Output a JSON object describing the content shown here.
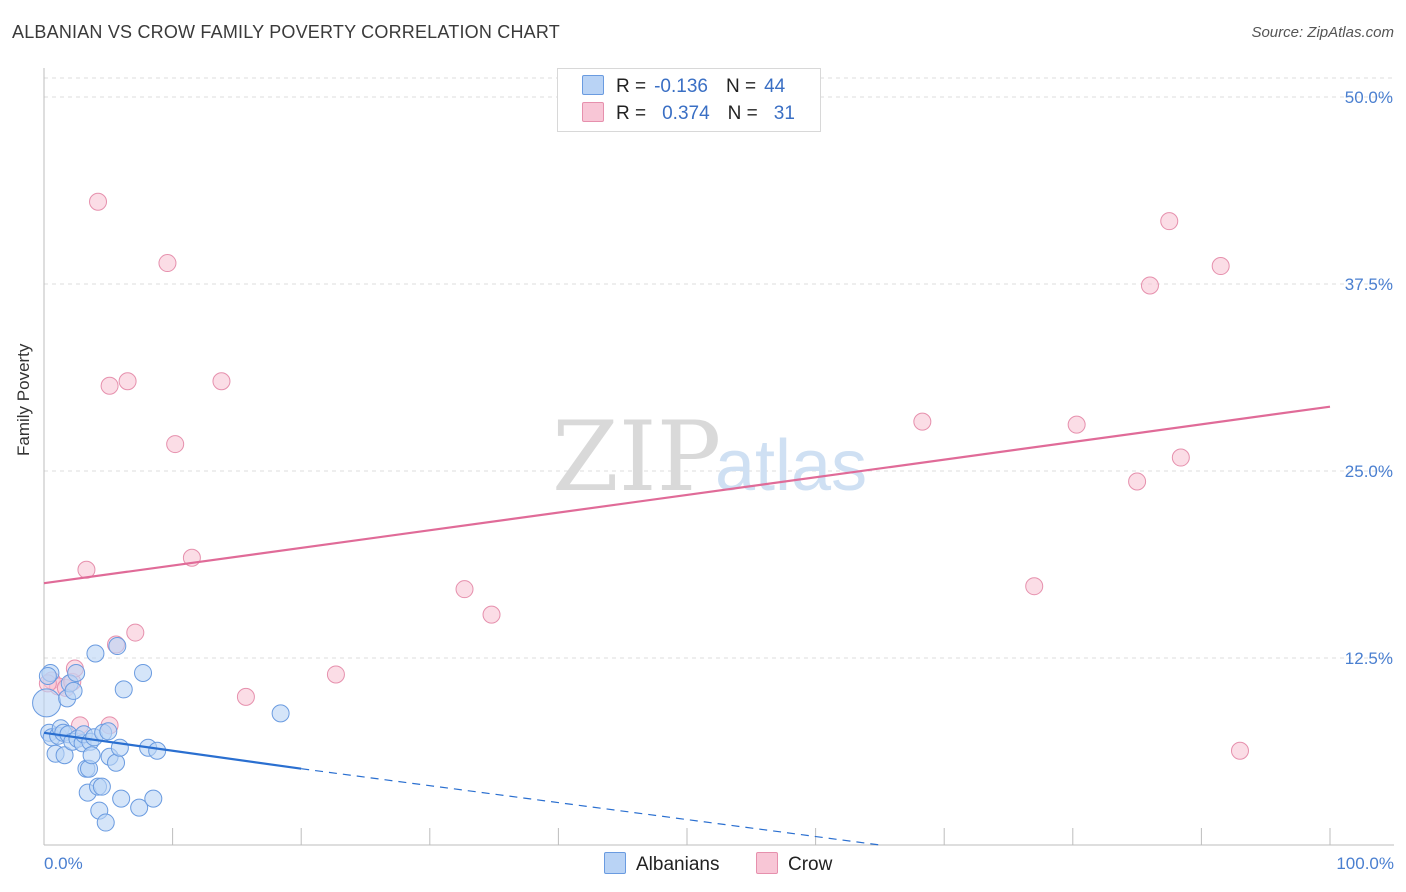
{
  "header": {
    "title": "ALBANIAN VS CROW FAMILY POVERTY CORRELATION CHART",
    "source": "Source: ZipAtlas.com"
  },
  "watermark": {
    "zip": "ZIP",
    "atlas": "atlas"
  },
  "legend": {
    "r_label": "R =",
    "n_label": "N =",
    "albanians": {
      "r": "-0.136",
      "n": "44"
    },
    "crow": {
      "r": "0.374",
      "n": "31"
    }
  },
  "colors": {
    "albanian_fill": "#b9d3f5",
    "albanian_stroke": "#6a9be0",
    "albanian_line": "#2a6fd0",
    "crow_fill": "#f8c6d6",
    "crow_stroke": "#e690ad",
    "crow_line": "#e06b98",
    "tick_text": "#4a7fd0"
  },
  "chart_data": {
    "type": "scatter",
    "title": "ALBANIAN VS CROW FAMILY POVERTY CORRELATION CHART",
    "xlabel": "",
    "ylabel": "Family Poverty",
    "xlim": [
      0,
      100
    ],
    "ylim": [
      0,
      50
    ],
    "x_ticks": [
      0,
      100
    ],
    "x_tick_labels": [
      "0.0%",
      "100.0%"
    ],
    "y_ticks": [
      12.5,
      25.0,
      37.5,
      50.0
    ],
    "y_tick_labels": [
      "12.5%",
      "25.0%",
      "37.5%",
      "50.0%"
    ],
    "grid": true,
    "series": [
      {
        "name": "Albanians",
        "r": -0.136,
        "n": 44,
        "points": [
          [
            0.2,
            9.5
          ],
          [
            0.4,
            7.5
          ],
          [
            0.5,
            11.5
          ],
          [
            0.6,
            7.2
          ],
          [
            0.9,
            6.1
          ],
          [
            1.1,
            7.3
          ],
          [
            1.3,
            7.8
          ],
          [
            1.5,
            7.5
          ],
          [
            1.6,
            6.0
          ],
          [
            1.8,
            9.8
          ],
          [
            1.9,
            7.4
          ],
          [
            2.0,
            10.8
          ],
          [
            2.2,
            6.9
          ],
          [
            2.3,
            10.3
          ],
          [
            2.5,
            11.5
          ],
          [
            2.6,
            7.1
          ],
          [
            3.0,
            6.8
          ],
          [
            3.1,
            7.4
          ],
          [
            3.3,
            5.1
          ],
          [
            3.4,
            3.5
          ],
          [
            3.5,
            5.1
          ],
          [
            3.6,
            6.9
          ],
          [
            3.7,
            6.0
          ],
          [
            3.9,
            7.2
          ],
          [
            4.0,
            12.8
          ],
          [
            4.2,
            3.9
          ],
          [
            4.3,
            2.3
          ],
          [
            4.5,
            3.9
          ],
          [
            4.6,
            7.5
          ],
          [
            4.8,
            1.5
          ],
          [
            5.0,
            7.6
          ],
          [
            5.1,
            5.9
          ],
          [
            5.6,
            5.5
          ],
          [
            5.7,
            13.3
          ],
          [
            5.9,
            6.5
          ],
          [
            6.0,
            3.1
          ],
          [
            6.2,
            10.4
          ],
          [
            7.4,
            2.5
          ],
          [
            7.7,
            11.5
          ],
          [
            8.1,
            6.5
          ],
          [
            8.5,
            3.1
          ],
          [
            8.8,
            6.3
          ],
          [
            18.4,
            8.8
          ],
          [
            0.3,
            11.3
          ]
        ],
        "trend": {
          "x": [
            0,
            20
          ],
          "y": [
            7.5,
            5.1
          ],
          "dashed_to": [
            65,
            0
          ]
        }
      },
      {
        "name": "Crow",
        "r": 0.374,
        "n": 31,
        "points": [
          [
            0.6,
            11.0
          ],
          [
            1.1,
            10.6
          ],
          [
            1.7,
            10.5
          ],
          [
            2.2,
            10.9
          ],
          [
            2.4,
            11.8
          ],
          [
            2.8,
            8.0
          ],
          [
            3.3,
            18.4
          ],
          [
            4.2,
            43.0
          ],
          [
            5.1,
            8.0
          ],
          [
            5.1,
            30.7
          ],
          [
            5.6,
            13.4
          ],
          [
            6.5,
            31.0
          ],
          [
            7.1,
            14.2
          ],
          [
            9.6,
            38.9
          ],
          [
            10.2,
            26.8
          ],
          [
            11.5,
            19.2
          ],
          [
            13.8,
            31.0
          ],
          [
            15.7,
            9.9
          ],
          [
            22.7,
            11.4
          ],
          [
            32.7,
            17.1
          ],
          [
            34.8,
            15.4
          ],
          [
            68.3,
            28.3
          ],
          [
            77.0,
            17.3
          ],
          [
            80.3,
            28.1
          ],
          [
            85.0,
            24.3
          ],
          [
            86.0,
            37.4
          ],
          [
            87.5,
            41.7
          ],
          [
            88.4,
            25.9
          ],
          [
            91.5,
            38.7
          ],
          [
            93.0,
            6.3
          ],
          [
            0.3,
            10.8
          ]
        ],
        "trend": {
          "x": [
            0,
            100
          ],
          "y": [
            17.5,
            29.3
          ]
        }
      }
    ]
  }
}
